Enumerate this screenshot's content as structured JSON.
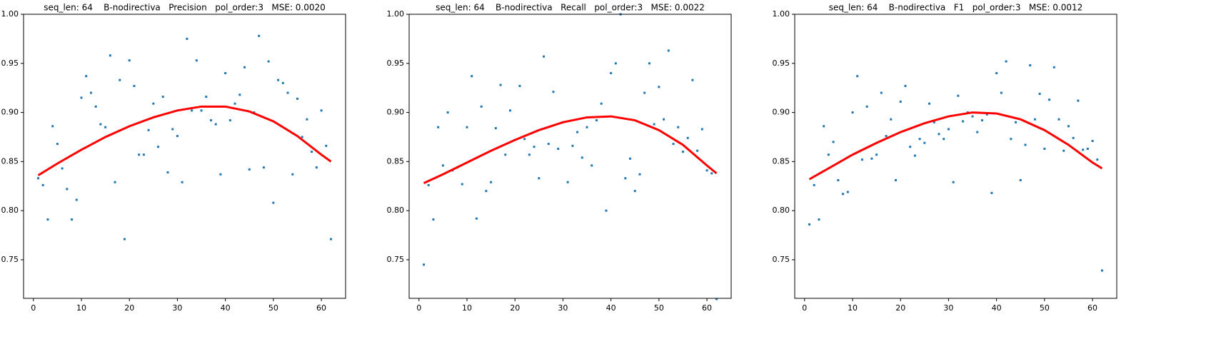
{
  "chart_data": [
    {
      "type": "scatter",
      "title": "seq_len: 64    B-nodirectiva   Precision   pol_order:3   MSE: 0.0020",
      "xlim": [
        -2.05,
        65.05
      ],
      "ylim": [
        0.7107,
        1.0
      ],
      "xticks": [
        0,
        10,
        20,
        30,
        40,
        50,
        60
      ],
      "yticks": [
        0.75,
        {
          "value": 0.8,
          "label": "0.80"
        },
        0.85,
        {
          "value": 0.9,
          "label": "0.90"
        },
        0.95,
        {
          "value": 1.0,
          "label": "1.00"
        }
      ],
      "series": [
        {
          "type": "scatter",
          "color": "#1f77b4",
          "x": [
            1,
            2,
            3,
            4,
            5,
            6,
            7,
            8,
            9,
            10,
            11,
            12,
            13,
            14,
            15,
            16,
            17,
            18,
            19,
            20,
            21,
            22,
            23,
            24,
            25,
            26,
            27,
            28,
            29,
            30,
            31,
            32,
            33,
            34,
            35,
            36,
            37,
            38,
            39,
            40,
            41,
            42,
            43,
            44,
            45,
            46,
            47,
            48,
            49,
            50,
            51,
            52,
            53,
            54,
            55,
            56,
            57,
            58,
            59,
            60,
            61,
            62
          ],
          "values": [
            0.833,
            0.826,
            0.791,
            0.886,
            0.868,
            0.843,
            0.822,
            0.791,
            0.811,
            0.915,
            0.937,
            0.92,
            0.906,
            0.888,
            0.885,
            0.958,
            0.829,
            0.933,
            0.771,
            0.953,
            0.927,
            0.857,
            0.857,
            0.882,
            0.909,
            0.865,
            0.916,
            0.839,
            0.883,
            0.876,
            0.829,
            0.975,
            0.902,
            0.953,
            0.902,
            0.916,
            0.892,
            0.888,
            0.837,
            0.94,
            0.892,
            0.909,
            0.918,
            0.946,
            0.842,
            0.9,
            0.978,
            0.844,
            0.952,
            0.808,
            0.933,
            0.93,
            0.92,
            0.837,
            0.914,
            0.875,
            0.893,
            0.86,
            0.844,
            0.902,
            0.866,
            0.771
          ]
        },
        {
          "type": "line",
          "color": "#ff0000",
          "x": [
            1,
            5,
            10,
            15,
            20,
            25,
            30,
            35,
            40,
            45,
            50,
            55,
            60,
            62
          ],
          "values": [
            0.836,
            0.848,
            0.862,
            0.875,
            0.886,
            0.895,
            0.902,
            0.906,
            0.906,
            0.901,
            0.891,
            0.876,
            0.857,
            0.85
          ]
        }
      ]
    },
    {
      "type": "scatter",
      "title": "seq_len: 64    B-nodirectiva   Recall   pol_order:3   MSE: 0.0022",
      "xlim": [
        -2.05,
        65.05
      ],
      "ylim": [
        0.7107,
        1.0
      ],
      "xticks": [
        0,
        10,
        20,
        30,
        40,
        50,
        60
      ],
      "yticks": [
        0.75,
        {
          "value": 0.8,
          "label": "0.80"
        },
        0.85,
        {
          "value": 0.9,
          "label": "0.90"
        },
        0.95,
        {
          "value": 1.0,
          "label": "1.00"
        }
      ],
      "series": [
        {
          "type": "scatter",
          "color": "#1f77b4",
          "x": [
            1,
            2,
            3,
            4,
            5,
            6,
            7,
            8,
            9,
            10,
            11,
            12,
            13,
            14,
            15,
            16,
            17,
            18,
            19,
            20,
            21,
            22,
            23,
            24,
            25,
            26,
            27,
            28,
            29,
            30,
            31,
            32,
            33,
            34,
            35,
            36,
            37,
            38,
            39,
            40,
            41,
            42,
            43,
            44,
            45,
            46,
            47,
            48,
            49,
            50,
            51,
            52,
            53,
            54,
            55,
            56,
            57,
            58,
            59,
            60,
            61,
            62
          ],
          "values": [
            0.745,
            0.826,
            0.791,
            0.885,
            0.846,
            0.9,
            0.841,
            0.844,
            0.827,
            0.885,
            0.937,
            0.792,
            0.906,
            0.82,
            0.829,
            0.884,
            0.928,
            0.857,
            0.902,
            0.872,
            0.927,
            0.873,
            0.857,
            0.865,
            0.833,
            0.957,
            0.868,
            0.921,
            0.863,
            0.89,
            0.829,
            0.866,
            0.88,
            0.854,
            0.885,
            0.846,
            0.892,
            0.909,
            0.8,
            0.94,
            0.95,
            1.0,
            0.833,
            0.853,
            0.82,
            0.837,
            0.92,
            0.95,
            0.888,
            0.926,
            0.893,
            0.963,
            0.868,
            0.885,
            0.86,
            0.874,
            0.933,
            0.861,
            0.883,
            0.841,
            0.838,
            0.71
          ]
        },
        {
          "type": "line",
          "color": "#ff0000",
          "x": [
            1,
            5,
            10,
            15,
            20,
            25,
            30,
            35,
            40,
            45,
            50,
            55,
            60,
            62
          ],
          "values": [
            0.828,
            0.837,
            0.849,
            0.861,
            0.872,
            0.882,
            0.89,
            0.895,
            0.896,
            0.892,
            0.882,
            0.867,
            0.846,
            0.838
          ]
        }
      ]
    },
    {
      "type": "scatter",
      "title": "seq_len: 64    B-nodirectiva   F1   pol_order:3   MSE: 0.0012",
      "xlim": [
        -2.05,
        65.05
      ],
      "ylim": [
        0.7107,
        1.0
      ],
      "xticks": [
        0,
        10,
        20,
        30,
        40,
        50,
        60
      ],
      "yticks": [
        0.75,
        {
          "value": 0.8,
          "label": "0.80"
        },
        0.85,
        {
          "value": 0.9,
          "label": "0.90"
        },
        0.95,
        {
          "value": 1.0,
          "label": "1.00"
        }
      ],
      "series": [
        {
          "type": "scatter",
          "color": "#1f77b4",
          "x": [
            1,
            2,
            3,
            4,
            5,
            6,
            7,
            8,
            9,
            10,
            11,
            12,
            13,
            14,
            15,
            16,
            17,
            18,
            19,
            20,
            21,
            22,
            23,
            24,
            25,
            26,
            27,
            28,
            29,
            30,
            31,
            32,
            33,
            34,
            35,
            36,
            37,
            38,
            39,
            40,
            41,
            42,
            43,
            44,
            45,
            46,
            47,
            48,
            49,
            50,
            51,
            52,
            53,
            54,
            55,
            56,
            57,
            58,
            59,
            60,
            61,
            62
          ],
          "values": [
            0.786,
            0.826,
            0.791,
            0.886,
            0.857,
            0.87,
            0.831,
            0.817,
            0.819,
            0.9,
            0.937,
            0.852,
            0.906,
            0.853,
            0.857,
            0.92,
            0.876,
            0.893,
            0.831,
            0.911,
            0.927,
            0.865,
            0.856,
            0.873,
            0.869,
            0.909,
            0.89,
            0.878,
            0.873,
            0.883,
            0.829,
            0.917,
            0.891,
            0.9,
            0.896,
            0.88,
            0.892,
            0.898,
            0.818,
            0.94,
            0.92,
            0.952,
            0.873,
            0.89,
            0.831,
            0.867,
            0.948,
            0.893,
            0.919,
            0.863,
            0.913,
            0.946,
            0.893,
            0.861,
            0.886,
            0.874,
            0.912,
            0.862,
            0.863,
            0.871,
            0.852,
            0.739
          ]
        },
        {
          "type": "line",
          "color": "#ff0000",
          "x": [
            1,
            5,
            10,
            15,
            20,
            25,
            30,
            35,
            40,
            45,
            50,
            55,
            60,
            62
          ],
          "values": [
            0.832,
            0.843,
            0.857,
            0.869,
            0.88,
            0.889,
            0.896,
            0.9,
            0.899,
            0.893,
            0.882,
            0.867,
            0.849,
            0.843
          ]
        }
      ]
    }
  ]
}
